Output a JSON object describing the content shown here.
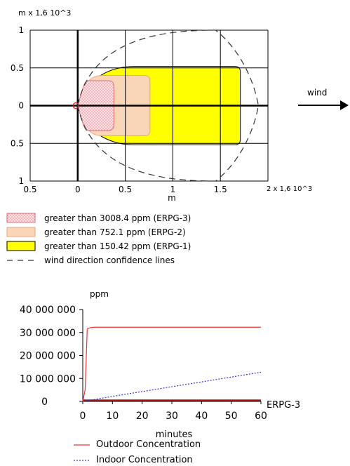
{
  "chart_data": [
    {
      "type": "area",
      "name": "threat-zone-plot",
      "y_axis_label": "m  x 1,6 10^3",
      "x_axis_label": "m",
      "x_axis_unit": "2 x 1,6 10^3",
      "x_ticks": [
        "0.5",
        "0",
        "0.5",
        "1",
        "1.5"
      ],
      "y_ticks": [
        "1",
        "0.5",
        "0",
        "0.5",
        "1"
      ],
      "xlim": [
        -0.5,
        2
      ],
      "ylim": [
        -1,
        1
      ],
      "grid": true,
      "wind_label": "wind",
      "zones": [
        {
          "name": "ERPG-3",
          "max_downwind": 0.38,
          "half_width": 0.33,
          "color": "#f4b8c0"
        },
        {
          "name": "ERPG-2",
          "max_downwind": 0.76,
          "half_width": 0.4,
          "color": "#f9d6b8"
        },
        {
          "name": "ERPG-1",
          "max_downwind": 1.71,
          "half_width": 0.52,
          "color": "#ffff00"
        }
      ],
      "legend": [
        {
          "label": "greater than 3008.4 ppm (ERPG-3)",
          "swatch": "dotted-pink"
        },
        {
          "label": "greater than 752.1 ppm (ERPG-2)",
          "swatch": "peach"
        },
        {
          "label": "greater than 150.42 ppm (ERPG-1)",
          "swatch": "yellow"
        },
        {
          "label": "wind direction confidence lines",
          "swatch": "dash"
        }
      ]
    },
    {
      "type": "line",
      "name": "concentration-over-time",
      "ylabel": "ppm",
      "xlabel": "minutes",
      "x_ticks": [
        0,
        10,
        20,
        30,
        40,
        50,
        60
      ],
      "y_ticks": [
        "0",
        "10 000 000",
        "20 000 000",
        "30 000 000",
        "40 000 000"
      ],
      "xlim": [
        0,
        60
      ],
      "ylim": [
        0,
        40000000
      ],
      "threshold": {
        "label": "ERPG-3",
        "value": 3008.4
      },
      "series": [
        {
          "name": "Outdoor Concentration",
          "color": "#ee3333",
          "style": "solid",
          "x": [
            0,
            0.8,
            1.5,
            2.5,
            4,
            60
          ],
          "y": [
            0,
            5000000,
            31500000,
            32100000,
            32300000,
            32300000
          ]
        },
        {
          "name": "Indoor Concentration",
          "color": "#3333dd",
          "style": "dotted",
          "x": [
            0,
            10,
            20,
            30,
            40,
            50,
            60
          ],
          "y": [
            0,
            2200000,
            4300000,
            6400000,
            8500000,
            10600000,
            12700000
          ]
        }
      ]
    }
  ]
}
